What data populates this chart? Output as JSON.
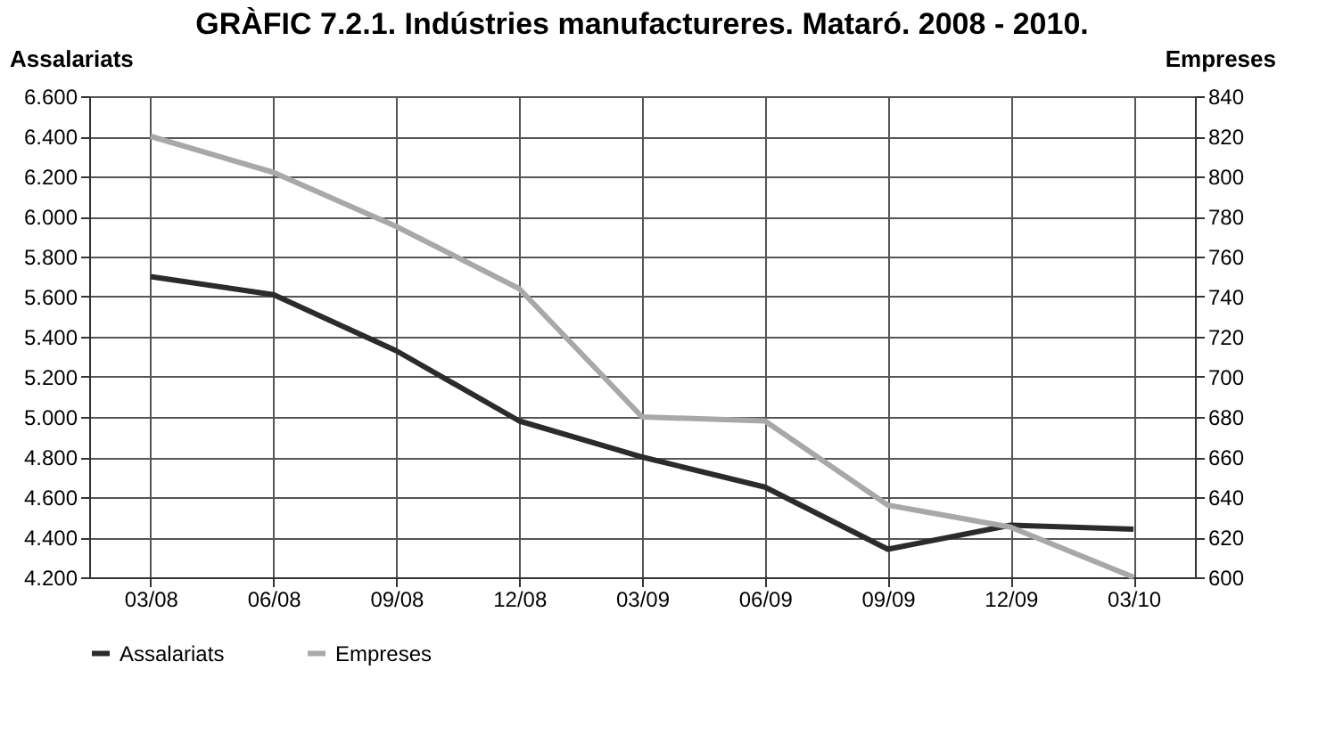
{
  "chart_data": {
    "type": "line",
    "title": "GRÀFIC 7.2.1. Indústries manufactureres. Mataró. 2008 - 2010.",
    "ylabel": "Assalariats",
    "y2label": "Empreses",
    "categories": [
      "03/08",
      "06/08",
      "09/08",
      "12/08",
      "03/09",
      "06/09",
      "09/09",
      "12/09",
      "03/10"
    ],
    "series": [
      {
        "name": "Assalariats",
        "color": "#2b2b2b",
        "axis": "y",
        "values": [
          5700,
          5610,
          5330,
          4980,
          4800,
          4650,
          4340,
          4460,
          4440
        ]
      },
      {
        "name": "Empreses",
        "color": "#a8a8a8",
        "axis": "y2",
        "values": [
          820,
          802,
          775,
          744,
          680,
          678,
          636,
          625,
          600
        ]
      }
    ],
    "ylim": [
      4200,
      6600
    ],
    "yticks": [
      {
        "value": 4200,
        "label": "4.200"
      },
      {
        "value": 4400,
        "label": "4.400"
      },
      {
        "value": 4600,
        "label": "4.600"
      },
      {
        "value": 4800,
        "label": "4.800"
      },
      {
        "value": 5000,
        "label": "5.000"
      },
      {
        "value": 5200,
        "label": "5.200"
      },
      {
        "value": 5400,
        "label": "5.400"
      },
      {
        "value": 5600,
        "label": "5.600"
      },
      {
        "value": 5800,
        "label": "5.800"
      },
      {
        "value": 6000,
        "label": "6.000"
      },
      {
        "value": 6200,
        "label": "6.200"
      },
      {
        "value": 6400,
        "label": "6.400"
      },
      {
        "value": 6600,
        "label": "6.600"
      }
    ],
    "y2lim": [
      600,
      840
    ],
    "y2ticks": [
      600,
      620,
      640,
      660,
      680,
      700,
      720,
      740,
      760,
      780,
      800,
      820,
      840
    ],
    "grid": true,
    "legend": "bottom",
    "marker": "none",
    "line_style": "solid"
  }
}
